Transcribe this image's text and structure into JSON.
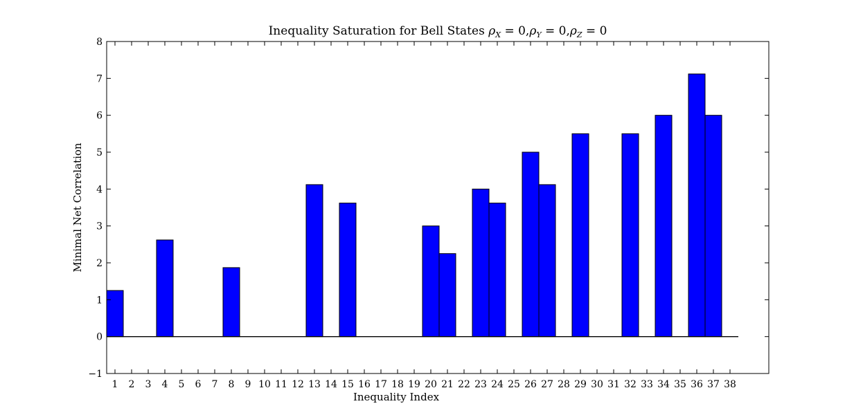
{
  "chart_data": {
    "type": "bar",
    "title": "Inequality Saturation for Bell States ρ_X = 0, ρ_Y = 0, ρ_Z = 0",
    "title_parts": {
      "prefix": "Inequality Saturation for Bell States ",
      "terms": [
        {
          "sym": "ρ",
          "sub": "X",
          "eq": " = 0"
        },
        {
          "sym": "ρ",
          "sub": "Y",
          "eq": " = 0"
        },
        {
          "sym": "ρ",
          "sub": "Z",
          "eq": " = 0"
        }
      ]
    },
    "xlabel": "Inequality Index",
    "ylabel": "Minimal Net Correlation",
    "ylim": [
      -1,
      8
    ],
    "yticks": [
      "−1",
      "0",
      "1",
      "2",
      "3",
      "4",
      "5",
      "6",
      "7",
      "8"
    ],
    "categories": [
      "1",
      "2",
      "3",
      "4",
      "5",
      "6",
      "7",
      "8",
      "9",
      "10",
      "11",
      "12",
      "13",
      "14",
      "15",
      "16",
      "17",
      "18",
      "19",
      "20",
      "21",
      "22",
      "23",
      "24",
      "25",
      "26",
      "27",
      "28",
      "29",
      "30",
      "31",
      "32",
      "33",
      "34",
      "35",
      "36",
      "37",
      "38"
    ],
    "values": [
      1.25,
      0,
      0,
      2.62,
      0,
      0,
      0,
      1.87,
      0,
      0,
      0,
      0,
      4.12,
      0,
      3.62,
      0,
      0,
      0,
      0,
      3.0,
      2.25,
      0,
      4.0,
      3.62,
      0,
      5.0,
      4.12,
      0,
      5.5,
      0,
      0,
      5.5,
      0,
      6.0,
      0,
      7.12,
      6.0,
      0
    ],
    "bar_color": "#0000ff",
    "grid": false,
    "legend": "none"
  }
}
